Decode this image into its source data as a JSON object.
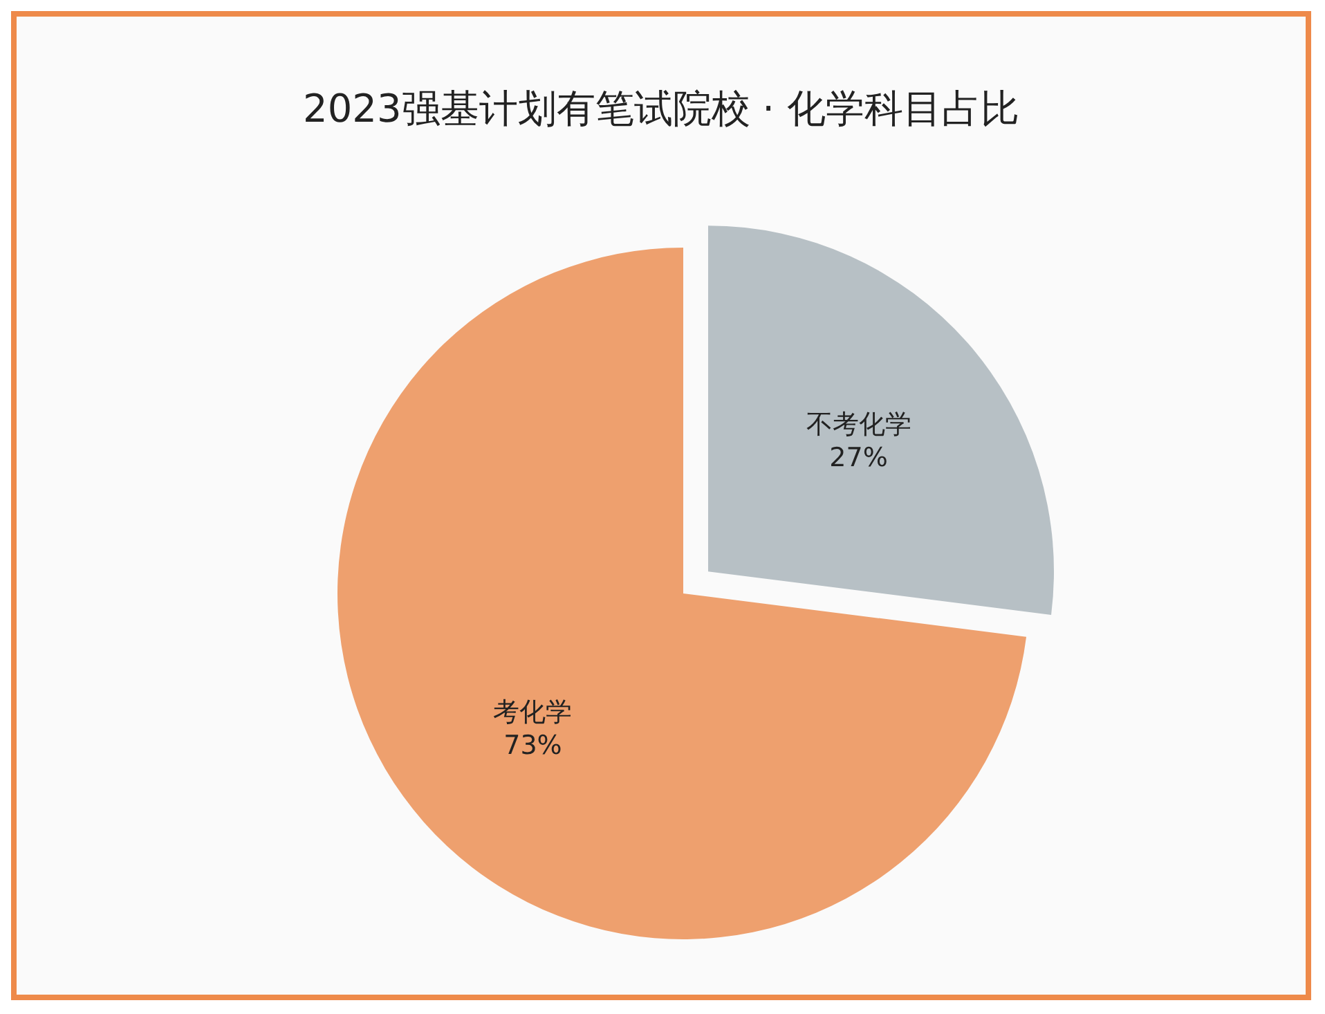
{
  "chart_data": {
    "type": "pie",
    "title": "2023强基计划有笔试院校 · 化学科目占比",
    "categories": [
      "不考化学",
      "考化学"
    ],
    "values": [
      27,
      73
    ],
    "value_labels": [
      "27%",
      "73%"
    ],
    "colors": [
      "#b7c0c5",
      "#eea06e"
    ]
  }
}
